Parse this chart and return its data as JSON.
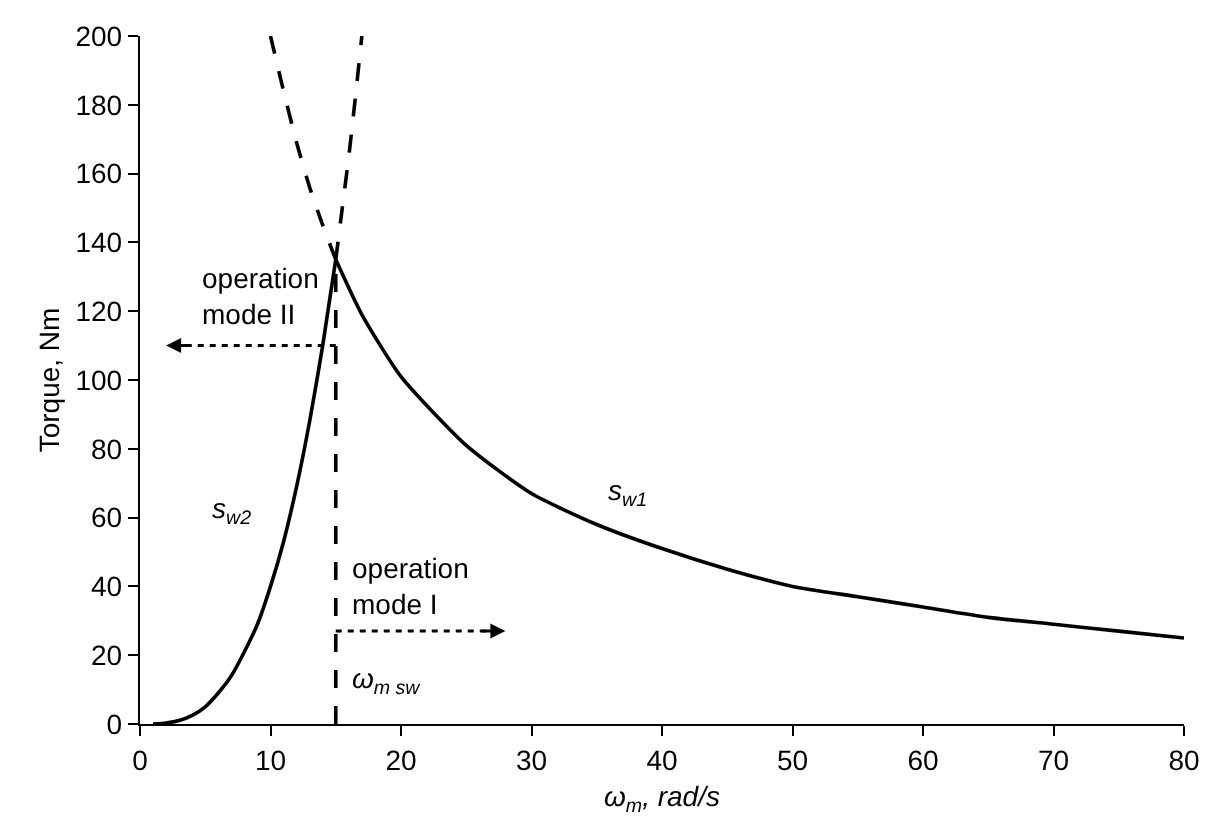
{
  "chart_data": {
    "type": "line",
    "xlabel": "ω$_{m}$, rad/s",
    "ylabel": "Torque, Nm",
    "xlim": [
      0,
      80
    ],
    "ylim": [
      0,
      200
    ],
    "xticks": [
      0,
      10,
      20,
      30,
      40,
      50,
      60,
      70,
      80
    ],
    "yticks": [
      0,
      20,
      40,
      60,
      80,
      100,
      120,
      140,
      160,
      180,
      200
    ],
    "marker": "none",
    "series": [
      {
        "name": "s$_{w2}$",
        "color": "#000000",
        "line_style": "solid",
        "x": [
          1,
          2,
          3,
          4,
          5,
          6,
          7,
          8,
          9,
          10,
          11,
          12,
          13,
          14,
          15
        ],
        "values": [
          0,
          0.3,
          1,
          2.5,
          5,
          9,
          14,
          21,
          29,
          40,
          53,
          69,
          88,
          110,
          135
        ]
      },
      {
        "name": "s$_{w1}$",
        "color": "#000000",
        "line_style": "solid",
        "x": [
          15,
          17,
          20,
          25,
          30,
          35,
          40,
          45,
          50,
          55,
          60,
          65,
          70,
          75,
          80
        ],
        "values": [
          135,
          119,
          101,
          81,
          67,
          58,
          51,
          45,
          40,
          37,
          34,
          31,
          29,
          27,
          25
        ]
      },
      {
        "color": "#000000",
        "line_style": "dashed",
        "x": [
          15,
          15.5,
          16,
          16.5,
          17
        ],
        "values": [
          135,
          150,
          165,
          182,
          200
        ]
      },
      {
        "color": "#000000",
        "line_style": "dashed",
        "x": [
          10,
          11,
          12,
          13,
          14,
          15
        ],
        "values": [
          200,
          184,
          169,
          156,
          145,
          135
        ]
      },
      {
        "color": "#000000",
        "line_style": "dashed",
        "x": [
          15,
          15
        ],
        "values": [
          0,
          135
        ]
      }
    ],
    "annotations": [
      "operation\nmode II",
      "operation\nmode I",
      "ω$_{m sw}$"
    ]
  }
}
